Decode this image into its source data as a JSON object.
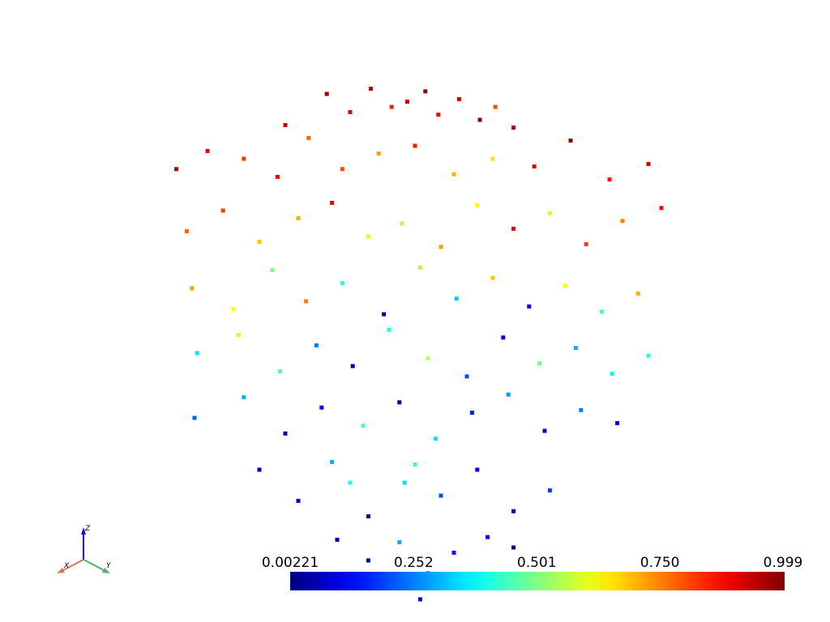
{
  "chart_data": {
    "type": "scatter",
    "x": [
      -0.34,
      -0.25,
      -0.17,
      -0.09,
      -0.03,
      0.04,
      0.09,
      0.17,
      0.25,
      0.31,
      0.38,
      -0.5,
      -0.92,
      -0.8,
      -0.66,
      -0.53,
      -0.41,
      -0.28,
      -0.14,
      0,
      0.15,
      0.3,
      0.46,
      0.6,
      0.75,
      0.9,
      -0.88,
      -0.74,
      -0.6,
      -0.45,
      -0.32,
      -0.18,
      -0.05,
      0.1,
      0.24,
      0.38,
      0.52,
      0.66,
      0.8,
      0.95,
      -0.86,
      -0.7,
      -0.55,
      -0.42,
      -0.28,
      -0.12,
      0.02,
      0.16,
      0.3,
      0.44,
      0.58,
      0.72,
      0.86,
      -0.84,
      -0.68,
      -0.52,
      -0.38,
      -0.24,
      -0.1,
      0.05,
      0.2,
      0.34,
      0.48,
      0.62,
      0.76,
      0.9,
      -0.85,
      -0.66,
      -0.5,
      -0.36,
      -0.2,
      -0.06,
      0.08,
      0.22,
      0.36,
      0.5,
      0.64,
      0.78,
      -0.6,
      -0.45,
      -0.32,
      -0.18,
      -0.04,
      0.1,
      0.24,
      0.38,
      0.52,
      -0.25,
      0,
      -0.3,
      -0.18,
      -0.06,
      0.05,
      0.15,
      0.28,
      0.38,
      -0.2,
      0.02
    ],
    "y": [
      0.95,
      0.88,
      0.97,
      0.9,
      0.92,
      0.96,
      0.87,
      0.93,
      0.85,
      0.9,
      0.82,
      0.83,
      0.66,
      0.73,
      0.7,
      0.63,
      0.78,
      0.66,
      0.72,
      0.75,
      0.64,
      0.7,
      0.67,
      0.77,
      0.62,
      0.68,
      0.42,
      0.5,
      0.38,
      0.47,
      0.53,
      0.4,
      0.45,
      0.36,
      0.52,
      0.43,
      0.49,
      0.37,
      0.46,
      0.51,
      0.2,
      0.12,
      0.27,
      0.15,
      0.22,
      0.1,
      0.28,
      0.16,
      0.24,
      0.13,
      0.21,
      0.11,
      0.18,
      -0.05,
      0.02,
      -0.12,
      -0.02,
      -0.1,
      0.04,
      -0.07,
      -0.14,
      0.01,
      -0.09,
      -0.03,
      -0.13,
      -0.06,
      -0.3,
      -0.22,
      -0.36,
      -0.26,
      -0.33,
      -0.24,
      -0.38,
      -0.28,
      -0.21,
      -0.35,
      -0.27,
      -0.32,
      -0.5,
      -0.62,
      -0.47,
      -0.68,
      -0.55,
      -0.6,
      -0.5,
      -0.66,
      -0.58,
      -0.55,
      -0.48,
      -0.77,
      -0.85,
      -0.78,
      -0.9,
      -0.82,
      -0.76,
      -0.8,
      -0.95,
      -1.0
    ],
    "values": [
      0.98,
      0.9,
      0.95,
      0.85,
      0.93,
      0.97,
      0.88,
      0.92,
      0.99,
      0.8,
      0.95,
      0.93,
      0.95,
      0.9,
      0.82,
      0.88,
      0.78,
      0.8,
      0.72,
      0.85,
      0.7,
      0.65,
      0.9,
      0.98,
      0.86,
      0.92,
      0.78,
      0.82,
      0.68,
      0.7,
      0.88,
      0.6,
      0.55,
      0.72,
      0.62,
      0.9,
      0.58,
      0.82,
      0.75,
      0.87,
      0.72,
      0.62,
      0.5,
      0.75,
      0.42,
      0.05,
      0.55,
      0.32,
      0.68,
      0.1,
      0.62,
      0.45,
      0.7,
      0.35,
      0.6,
      0.45,
      0.25,
      0.05,
      0.4,
      0.55,
      0.2,
      0.1,
      0.48,
      0.3,
      0.38,
      0.42,
      0.22,
      0.3,
      0.04,
      0.12,
      0.45,
      0.02,
      0.35,
      0.15,
      0.28,
      0.06,
      0.25,
      0.1,
      0.05,
      0.08,
      0.3,
      0.02,
      0.35,
      0.2,
      0.12,
      0.04,
      0.18,
      0.4,
      0.42,
      0.05,
      0.02,
      0.3,
      0.08,
      0.15,
      0.12,
      0.04,
      0.06,
      0.1
    ],
    "colormap": "jet",
    "clim": [
      0.00221,
      0.999
    ],
    "cticks": [
      0.00221,
      0.252,
      0.501,
      {
        "value": 0.75,
        "label": "0.750"
      },
      0.999
    ],
    "orientation_axes": [
      "X",
      "Y",
      "Z"
    ]
  }
}
